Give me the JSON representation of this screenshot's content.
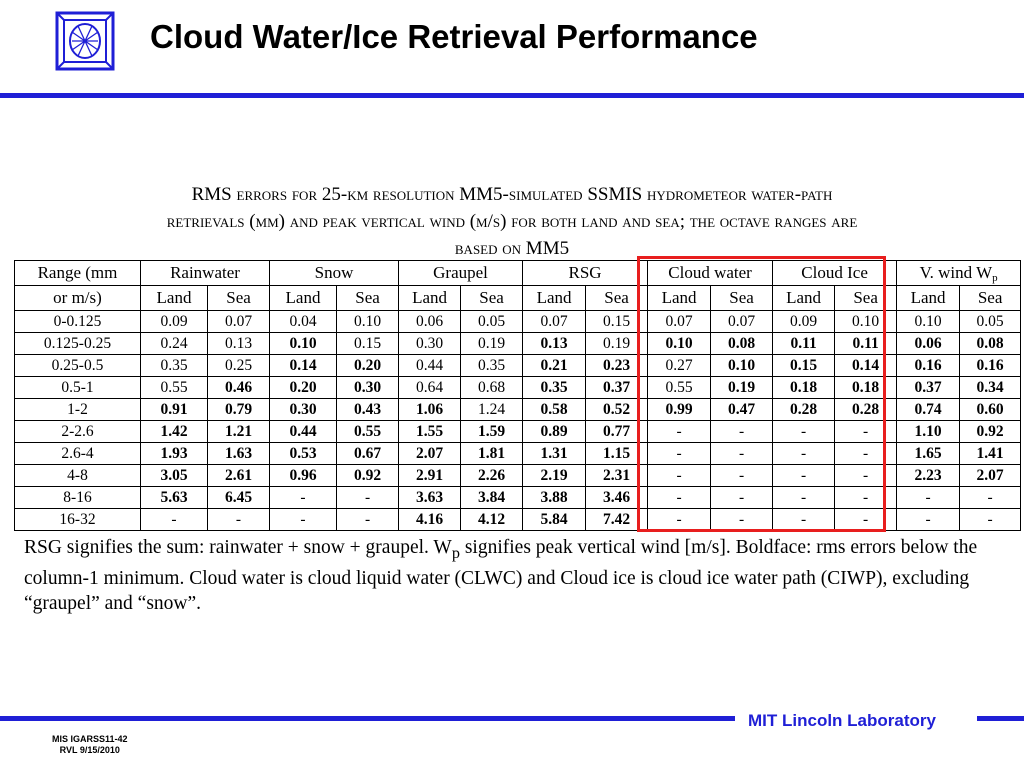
{
  "slide_title": "Cloud Water/Ice Retrieval Performance",
  "caption": {
    "line1_parts": [
      "RMS ",
      "errors for",
      " 25-",
      "km resolution",
      " MM5-",
      "simulated",
      " SSMIS ",
      "hydrometeor water-path"
    ],
    "line2": "retrievals (mm) and peak vertical wind (m/s) for both land and sea; the octave ranges are",
    "line3_sc": "based on",
    "line3_tail": " MM5"
  },
  "table": {
    "range_header_line1": "Range (mm",
    "range_header_line2": "or m/s)",
    "groups": [
      "Rainwater",
      "Snow",
      "Graupel",
      "RSG",
      "Cloud water",
      "Cloud Ice",
      "V. wind W"
    ],
    "wind_subscript": "p",
    "land_label": "Land",
    "sea_label": "Sea",
    "rows": [
      {
        "range": "0-0.125",
        "cells": [
          [
            "0.09",
            0
          ],
          [
            "0.07",
            0
          ],
          [
            "0.04",
            0
          ],
          [
            "0.10",
            0
          ],
          [
            "0.06",
            0
          ],
          [
            "0.05",
            0
          ],
          [
            "0.07",
            0
          ],
          [
            "0.15",
            0
          ],
          [
            "0.07",
            0
          ],
          [
            "0.07",
            0
          ],
          [
            "0.09",
            0
          ],
          [
            "0.10",
            0
          ],
          [
            "0.10",
            0
          ],
          [
            "0.05",
            0
          ]
        ]
      },
      {
        "range": "0.125-0.25",
        "cells": [
          [
            "0.24",
            0
          ],
          [
            "0.13",
            0
          ],
          [
            "0.10",
            1
          ],
          [
            "0.15",
            0
          ],
          [
            "0.30",
            0
          ],
          [
            "0.19",
            0
          ],
          [
            "0.13",
            1
          ],
          [
            "0.19",
            0
          ],
          [
            "0.10",
            1
          ],
          [
            "0.08",
            1
          ],
          [
            "0.11",
            1
          ],
          [
            "0.11",
            1
          ],
          [
            "0.06",
            1
          ],
          [
            "0.08",
            1
          ]
        ]
      },
      {
        "range": "0.25-0.5",
        "cells": [
          [
            "0.35",
            0
          ],
          [
            "0.25",
            0
          ],
          [
            "0.14",
            1
          ],
          [
            "0.20",
            1
          ],
          [
            "0.44",
            0
          ],
          [
            "0.35",
            0
          ],
          [
            "0.21",
            1
          ],
          [
            "0.23",
            1
          ],
          [
            "0.27",
            0
          ],
          [
            "0.10",
            1
          ],
          [
            "0.15",
            1
          ],
          [
            "0.14",
            1
          ],
          [
            "0.16",
            1
          ],
          [
            "0.16",
            1
          ]
        ]
      },
      {
        "range": "0.5-1",
        "cells": [
          [
            "0.55",
            0
          ],
          [
            "0.46",
            1
          ],
          [
            "0.20",
            1
          ],
          [
            "0.30",
            1
          ],
          [
            "0.64",
            0
          ],
          [
            "0.68",
            0
          ],
          [
            "0.35",
            1
          ],
          [
            "0.37",
            1
          ],
          [
            "0.55",
            0
          ],
          [
            "0.19",
            1
          ],
          [
            "0.18",
            1
          ],
          [
            "0.18",
            1
          ],
          [
            "0.37",
            1
          ],
          [
            "0.34",
            1
          ]
        ]
      },
      {
        "range": "1-2",
        "cells": [
          [
            "0.91",
            1
          ],
          [
            "0.79",
            1
          ],
          [
            "0.30",
            1
          ],
          [
            "0.43",
            1
          ],
          [
            "1.06",
            1
          ],
          [
            "1.24",
            0
          ],
          [
            "0.58",
            1
          ],
          [
            "0.52",
            1
          ],
          [
            "0.99",
            1
          ],
          [
            "0.47",
            1
          ],
          [
            "0.28",
            1
          ],
          [
            "0.28",
            1
          ],
          [
            "0.74",
            1
          ],
          [
            "0.60",
            1
          ]
        ]
      },
      {
        "range": "2-2.6",
        "cells": [
          [
            "1.42",
            1
          ],
          [
            "1.21",
            1
          ],
          [
            "0.44",
            1
          ],
          [
            "0.55",
            1
          ],
          [
            "1.55",
            1
          ],
          [
            "1.59",
            1
          ],
          [
            "0.89",
            1
          ],
          [
            "0.77",
            1
          ],
          [
            "-",
            0
          ],
          [
            "-",
            0
          ],
          [
            "-",
            0
          ],
          [
            "-",
            0
          ],
          [
            "1.10",
            1
          ],
          [
            "0.92",
            1
          ]
        ]
      },
      {
        "range": "2.6-4",
        "cells": [
          [
            "1.93",
            1
          ],
          [
            "1.63",
            1
          ],
          [
            "0.53",
            1
          ],
          [
            "0.67",
            1
          ],
          [
            "2.07",
            1
          ],
          [
            "1.81",
            1
          ],
          [
            "1.31",
            1
          ],
          [
            "1.15",
            1
          ],
          [
            "-",
            0
          ],
          [
            "-",
            0
          ],
          [
            "-",
            0
          ],
          [
            "-",
            0
          ],
          [
            "1.65",
            1
          ],
          [
            "1.41",
            1
          ]
        ]
      },
      {
        "range": "4-8",
        "cells": [
          [
            "3.05",
            1
          ],
          [
            "2.61",
            1
          ],
          [
            "0.96",
            1
          ],
          [
            "0.92",
            1
          ],
          [
            "2.91",
            1
          ],
          [
            "2.26",
            1
          ],
          [
            "2.19",
            1
          ],
          [
            "2.31",
            1
          ],
          [
            "-",
            0
          ],
          [
            "-",
            0
          ],
          [
            "-",
            0
          ],
          [
            "-",
            0
          ],
          [
            "2.23",
            1
          ],
          [
            "2.07",
            1
          ]
        ]
      },
      {
        "range": "8-16",
        "cells": [
          [
            "5.63",
            1
          ],
          [
            "6.45",
            1
          ],
          [
            "-",
            0
          ],
          [
            "-",
            0
          ],
          [
            "3.63",
            1
          ],
          [
            "3.84",
            1
          ],
          [
            "3.88",
            1
          ],
          [
            "3.46",
            1
          ],
          [
            "-",
            0
          ],
          [
            "-",
            0
          ],
          [
            "-",
            0
          ],
          [
            "-",
            0
          ],
          [
            "-",
            0
          ],
          [
            "-",
            0
          ]
        ]
      },
      {
        "range": "16-32",
        "cells": [
          [
            "-",
            0
          ],
          [
            "-",
            0
          ],
          [
            "-",
            0
          ],
          [
            "-",
            0
          ],
          [
            "4.16",
            1
          ],
          [
            "4.12",
            1
          ],
          [
            "5.84",
            1
          ],
          [
            "7.42",
            1
          ],
          [
            "-",
            0
          ],
          [
            "-",
            0
          ],
          [
            "-",
            0
          ],
          [
            "-",
            0
          ],
          [
            "-",
            0
          ],
          [
            "-",
            0
          ]
        ]
      }
    ]
  },
  "footnote": {
    "part1": "RSG signifies the sum: rainwater + snow +  graupel.   W",
    "sub": "p",
    "part2": " signifies peak vertical wind [m/s].   Boldface: rms errors below the column-1 minimum.  Cloud water is cloud liquid water (CLWC) and Cloud ice is cloud ice water path (CIWP), excluding “graupel” and “snow”."
  },
  "footer": {
    "lab_name": "MIT Lincoln Laboratory",
    "id_line1": "MIS IGARSS11-42",
    "id_line2": "RVL 9/15/2010"
  },
  "colors": {
    "rule_blue": "#1f1fd6",
    "highlight_red": "#e81e1e"
  },
  "icons": {
    "logo": "mit-ll-logo-icon"
  }
}
